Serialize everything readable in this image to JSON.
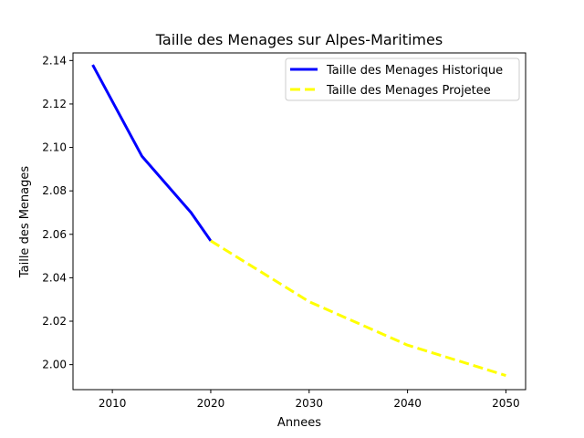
{
  "chart_data": {
    "type": "line",
    "title": "Taille des Menages sur Alpes-Maritimes",
    "xlabel": "Annees",
    "ylabel": "Taille des Menages",
    "xlim": [
      2006,
      2052
    ],
    "ylim": [
      1.9885,
      2.1435
    ],
    "xticks": [
      2010,
      2020,
      2030,
      2040,
      2050
    ],
    "yticks": [
      2.0,
      2.02,
      2.04,
      2.06,
      2.08,
      2.1,
      2.12,
      2.14
    ],
    "grid": false,
    "legend_position": "top-right",
    "series": [
      {
        "name": "Taille des Menages Historique",
        "color": "#0000ff",
        "style": "solid",
        "points": [
          [
            2008,
            2.138
          ],
          [
            2013,
            2.096
          ],
          [
            2018,
            2.07
          ],
          [
            2020,
            2.057
          ]
        ]
      },
      {
        "name": "Taille des Menages Projetee",
        "color": "#ffff00",
        "style": "dashed",
        "points": [
          [
            2020,
            2.057
          ],
          [
            2025,
            2.043
          ],
          [
            2030,
            2.029
          ],
          [
            2035,
            2.019
          ],
          [
            2040,
            2.009
          ],
          [
            2045,
            2.002
          ],
          [
            2050,
            1.995
          ]
        ]
      }
    ]
  }
}
